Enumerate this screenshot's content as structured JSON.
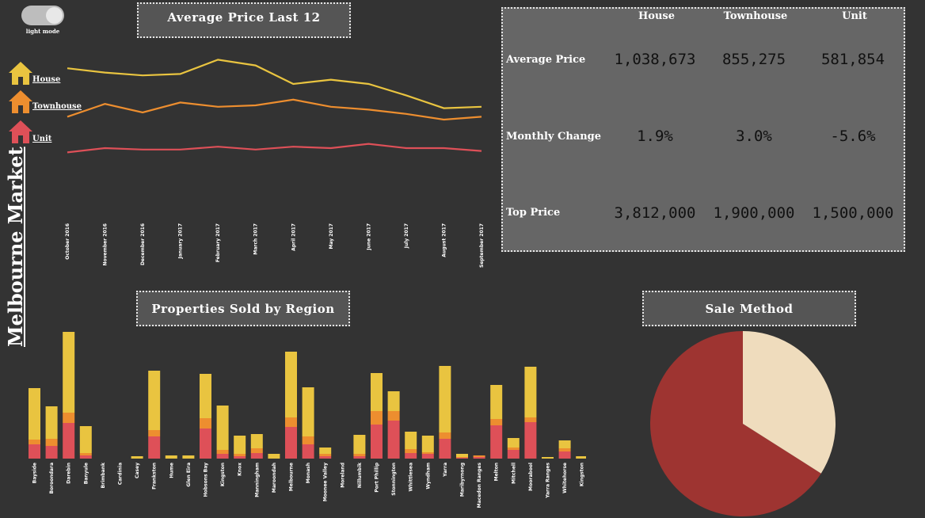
{
  "toggle": {
    "label": "light mode"
  },
  "sidebar": {
    "title": "Melbourne Market"
  },
  "line_title": "Average Price Last 12",
  "bar_title": "Properties Sold by Region",
  "pie_title": "Sale Method",
  "colors": {
    "house": "#e9c440",
    "townhouse": "#ed8e2f",
    "unit": "#de5058",
    "pie_a": "#9e3431",
    "pie_b": "#efdcbd"
  },
  "stats": {
    "columns": [
      "House",
      "Townhouse",
      "Unit"
    ],
    "rows": [
      {
        "label": "Average Price",
        "values": [
          "1,038,673",
          "855,275",
          "581,854"
        ]
      },
      {
        "label": "Monthly Change",
        "values": [
          "1.9%",
          "3.0%",
          "-5.6%"
        ]
      },
      {
        "label": "Top Price",
        "values": [
          "3,812,000",
          "1,900,000",
          "1,500,000"
        ]
      }
    ]
  },
  "chart_data": [
    {
      "type": "line",
      "title": "Average Price Last 12",
      "x": [
        "October 2016",
        "November 2016",
        "December 2016",
        "January 2017",
        "February 2017",
        "March 2017",
        "April 2017",
        "May 2017",
        "June 2017",
        "July 2017",
        "August 2017",
        "September 2017"
      ],
      "series": [
        {
          "name": "House",
          "values": [
            1.16,
            1.13,
            1.11,
            1.12,
            1.22,
            1.18,
            1.05,
            1.08,
            1.05,
            0.97,
            0.88,
            0.89
          ]
        },
        {
          "name": "Townhouse",
          "values": [
            0.82,
            0.91,
            0.85,
            0.92,
            0.89,
            0.9,
            0.94,
            0.89,
            0.87,
            0.84,
            0.8,
            0.82
          ]
        },
        {
          "name": "Unit",
          "values": [
            0.57,
            0.6,
            0.59,
            0.59,
            0.61,
            0.59,
            0.61,
            0.6,
            0.63,
            0.6,
            0.6,
            0.58
          ]
        }
      ],
      "ylim": [
        0.5,
        1.25
      ]
    },
    {
      "type": "bar",
      "title": "Properties Sold by Region",
      "stacked": true,
      "categories": [
        "Bayside",
        "Boroondara",
        "Darebin",
        "Banyule",
        "Brimbank",
        "Cardinia",
        "Casey",
        "Frankston",
        "Hume",
        "Glen Eira",
        "Hobsons Bay",
        "Kingston",
        "Knox",
        "Manningham",
        "Maroondah",
        "Melbourne",
        "Monash",
        "Moonee Valley",
        "Moreland",
        "Nillumbik",
        "Port Phillip",
        "Stonnington",
        "Whittlesea",
        "Wyndham",
        "Yarra",
        "Maribyrnong",
        "Macedon Ranges",
        "Melton",
        "Mitchell",
        "Moorabool",
        "Yarra Ranges",
        "Whitehorse",
        "Kingston"
      ],
      "series": [
        {
          "name": "Unit",
          "values": [
            18,
            16,
            45,
            4,
            0,
            0,
            0,
            28,
            0,
            0,
            38,
            6,
            3,
            7,
            0,
            40,
            18,
            3,
            0,
            3,
            43,
            48,
            7,
            6,
            25,
            1,
            2,
            42,
            11,
            46,
            0,
            9,
            0
          ]
        },
        {
          "name": "Townhouse",
          "values": [
            6,
            9,
            13,
            3,
            0,
            0,
            0,
            8,
            0,
            0,
            13,
            5,
            3,
            6,
            0,
            12,
            10,
            3,
            0,
            3,
            17,
            12,
            5,
            2,
            8,
            1,
            2,
            8,
            3,
            6,
            0,
            4,
            0
          ]
        },
        {
          "name": "House",
          "values": [
            65,
            41,
            102,
            34,
            0,
            0,
            3,
            75,
            4,
            4,
            56,
            56,
            23,
            18,
            6,
            83,
            62,
            8,
            0,
            24,
            48,
            25,
            22,
            21,
            84,
            4,
            0,
            43,
            12,
            64,
            2,
            10,
            3
          ]
        }
      ]
    },
    {
      "type": "pie",
      "title": "Sale Method",
      "values": [
        66,
        34
      ]
    }
  ]
}
